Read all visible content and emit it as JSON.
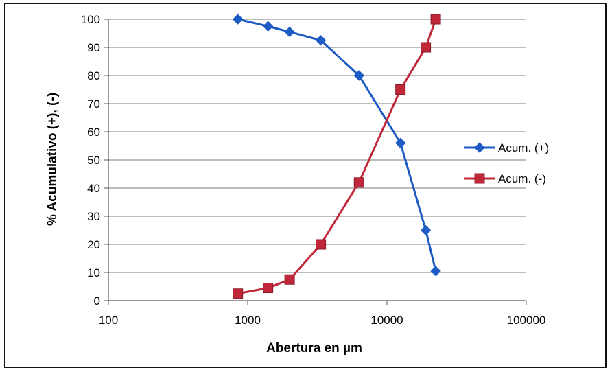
{
  "chart_data": {
    "type": "line",
    "title": "",
    "xlabel": "Abertura en µm",
    "ylabel": "%  Acumulativo (+), (-)",
    "xscale": "log",
    "xlim": [
      100,
      100000
    ],
    "ylim": [
      0,
      100
    ],
    "x_ticks": [
      "100",
      "1000",
      "10000",
      "100000"
    ],
    "y_ticks": [
      "0",
      "10",
      "20",
      "30",
      "40",
      "50",
      "60",
      "70",
      "80",
      "90",
      "100"
    ],
    "grid": "horizontal",
    "legend_position": "right",
    "series": [
      {
        "name": "Acum. (+)",
        "color": "#1f5bc4",
        "marker": "diamond",
        "x": [
          850,
          1400,
          2000,
          3350,
          6300,
          12500,
          19000,
          22400
        ],
        "y": [
          100,
          97.5,
          95.5,
          92.5,
          80,
          56,
          25,
          10.5
        ]
      },
      {
        "name": "Acum. (-)",
        "color": "#c0283a",
        "marker": "square",
        "x": [
          850,
          1400,
          2000,
          3350,
          6300,
          12500,
          19000,
          22400
        ],
        "y": [
          2.5,
          4.5,
          7.5,
          20,
          42,
          75,
          90,
          100
        ]
      }
    ]
  }
}
